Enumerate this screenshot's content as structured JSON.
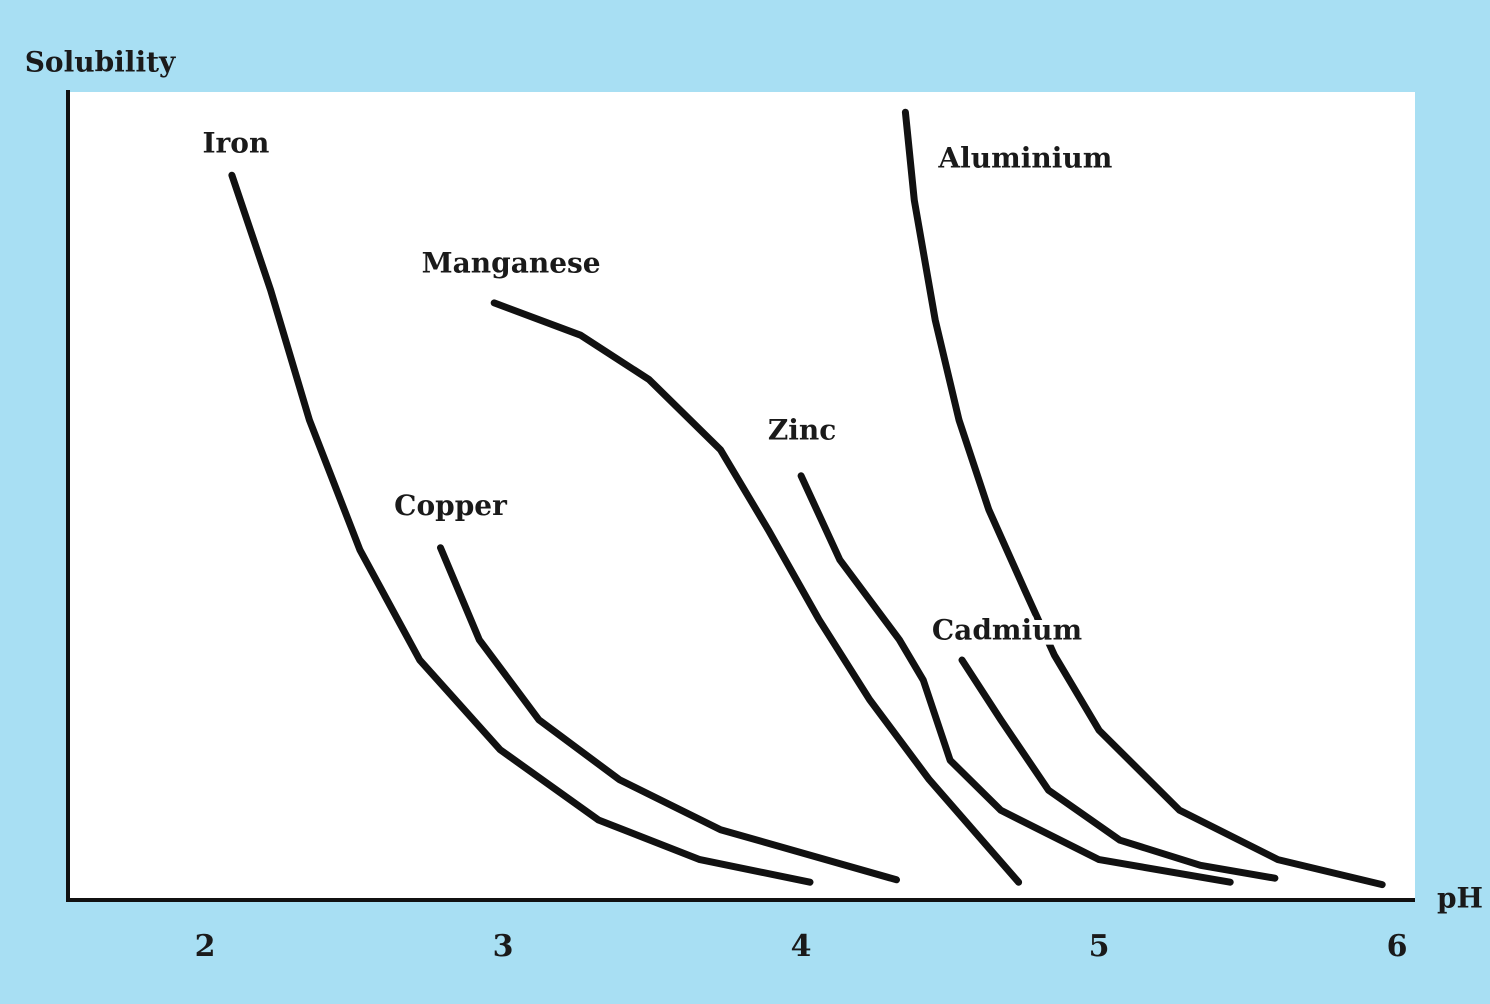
{
  "chart_data": {
    "type": "line",
    "x_label": "pH",
    "y_label": "Solubility",
    "xlim": [
      1.54,
      6.06
    ],
    "ylim": [
      0,
      100
    ],
    "xticks": [
      2,
      3,
      4,
      5,
      6
    ],
    "grid": false,
    "series": [
      {
        "name": "Iron",
        "color": "#111111",
        "x": [
          2.09,
          2.22,
          2.35,
          2.52,
          2.72,
          2.99,
          3.32,
          3.66,
          4.03
        ],
        "values": [
          89.7,
          75.5,
          59.4,
          43.3,
          29.7,
          18.6,
          9.9,
          5.0,
          2.2
        ]
      },
      {
        "name": "Copper",
        "color": "#111111",
        "x": [
          2.79,
          2.92,
          3.12,
          3.39,
          3.73,
          4.32
        ],
        "values": [
          43.6,
          32.2,
          22.3,
          14.9,
          8.7,
          2.5
        ]
      },
      {
        "name": "Manganese",
        "color": "#111111",
        "x": [
          2.97,
          3.26,
          3.49,
          3.73,
          3.89,
          4.06,
          4.23,
          4.43,
          4.73
        ],
        "values": [
          73.9,
          69.9,
          64.4,
          55.7,
          45.8,
          34.7,
          24.8,
          14.9,
          2.2
        ]
      },
      {
        "name": "Zinc",
        "color": "#111111",
        "x": [
          4.0,
          4.13,
          4.33,
          4.41,
          4.5,
          4.67,
          5.0,
          5.44
        ],
        "values": [
          52.5,
          42.1,
          32.2,
          27.2,
          17.3,
          11.1,
          5.0,
          2.2
        ]
      },
      {
        "name": "Cadmium",
        "color": "#111111",
        "x": [
          4.54,
          4.67,
          4.83,
          5.07,
          5.34,
          5.59
        ],
        "values": [
          29.7,
          22.3,
          13.6,
          7.4,
          4.3,
          2.7
        ]
      },
      {
        "name": "Aluminium",
        "color": "#111111",
        "x": [
          4.35,
          4.38,
          4.45,
          4.53,
          4.63,
          4.75,
          4.85,
          5.0,
          5.27,
          5.6,
          5.95
        ],
        "values": [
          97.5,
          86.6,
          71.8,
          59.4,
          48.3,
          38.4,
          30.3,
          21.0,
          11.1,
          5.0,
          1.9
        ]
      }
    ]
  }
}
